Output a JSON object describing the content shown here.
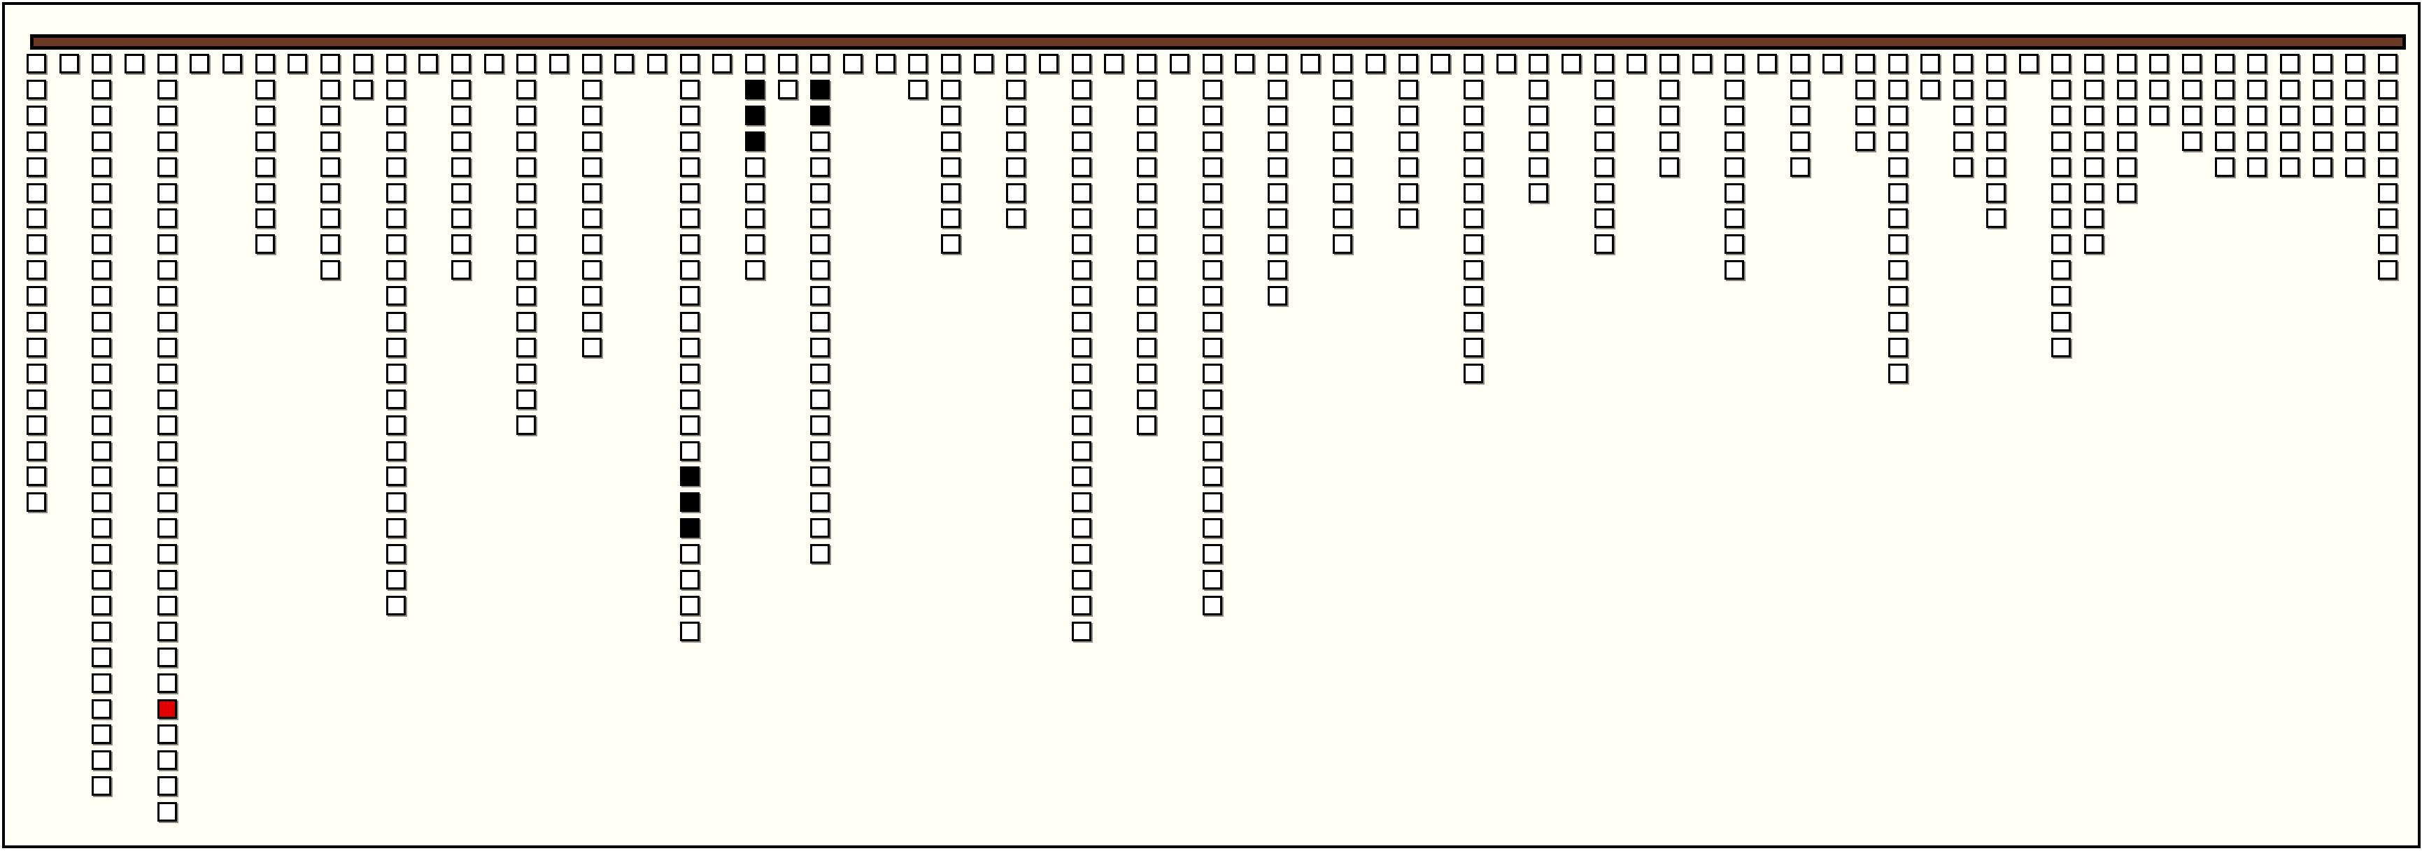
{
  "board": {
    "colors": {
      "background": "#fffff6",
      "bar": "#6b3a22",
      "empty": "#ffffff",
      "filled": "#000000",
      "marked": "#e00000"
    },
    "columns": [
      {
        "height": 18
      },
      {
        "height": 1
      },
      {
        "height": 29
      },
      {
        "height": 1
      },
      {
        "height": 30,
        "red": [
          25
        ]
      },
      {
        "height": 1
      },
      {
        "height": 1
      },
      {
        "height": 8
      },
      {
        "height": 1
      },
      {
        "height": 9
      },
      {
        "height": 2
      },
      {
        "height": 22
      },
      {
        "height": 1
      },
      {
        "height": 9
      },
      {
        "height": 1
      },
      {
        "height": 15
      },
      {
        "height": 1
      },
      {
        "height": 12
      },
      {
        "height": 1
      },
      {
        "height": 1
      },
      {
        "height": 23,
        "black": [
          16,
          17,
          18
        ]
      },
      {
        "height": 1
      },
      {
        "height": 9,
        "black": [
          1,
          2,
          3
        ]
      },
      {
        "height": 2
      },
      {
        "height": 20,
        "black": [
          1,
          2
        ]
      },
      {
        "height": 1
      },
      {
        "height": 1
      },
      {
        "height": 2
      },
      {
        "height": 8
      },
      {
        "height": 1
      },
      {
        "height": 7
      },
      {
        "height": 1
      },
      {
        "height": 23
      },
      {
        "height": 1
      },
      {
        "height": 15
      },
      {
        "height": 1
      },
      {
        "height": 22
      },
      {
        "height": 1
      },
      {
        "height": 10
      },
      {
        "height": 1
      },
      {
        "height": 8
      },
      {
        "height": 1
      },
      {
        "height": 7
      },
      {
        "height": 1
      },
      {
        "height": 13
      },
      {
        "height": 1
      },
      {
        "height": 6
      },
      {
        "height": 1
      },
      {
        "height": 8
      },
      {
        "height": 1
      },
      {
        "height": 5
      },
      {
        "height": 1
      },
      {
        "height": 9
      },
      {
        "height": 1
      },
      {
        "height": 5
      },
      {
        "height": 1
      },
      {
        "height": 4
      },
      {
        "height": 13
      },
      {
        "height": 2
      },
      {
        "height": 5
      },
      {
        "height": 7
      },
      {
        "height": 1
      },
      {
        "height": 12
      },
      {
        "height": 8
      },
      {
        "height": 6
      },
      {
        "height": 3
      },
      {
        "height": 4
      },
      {
        "height": 5
      },
      {
        "height": 5
      },
      {
        "height": 5
      },
      {
        "height": 5
      },
      {
        "height": 5
      },
      {
        "height": 9
      }
    ]
  }
}
